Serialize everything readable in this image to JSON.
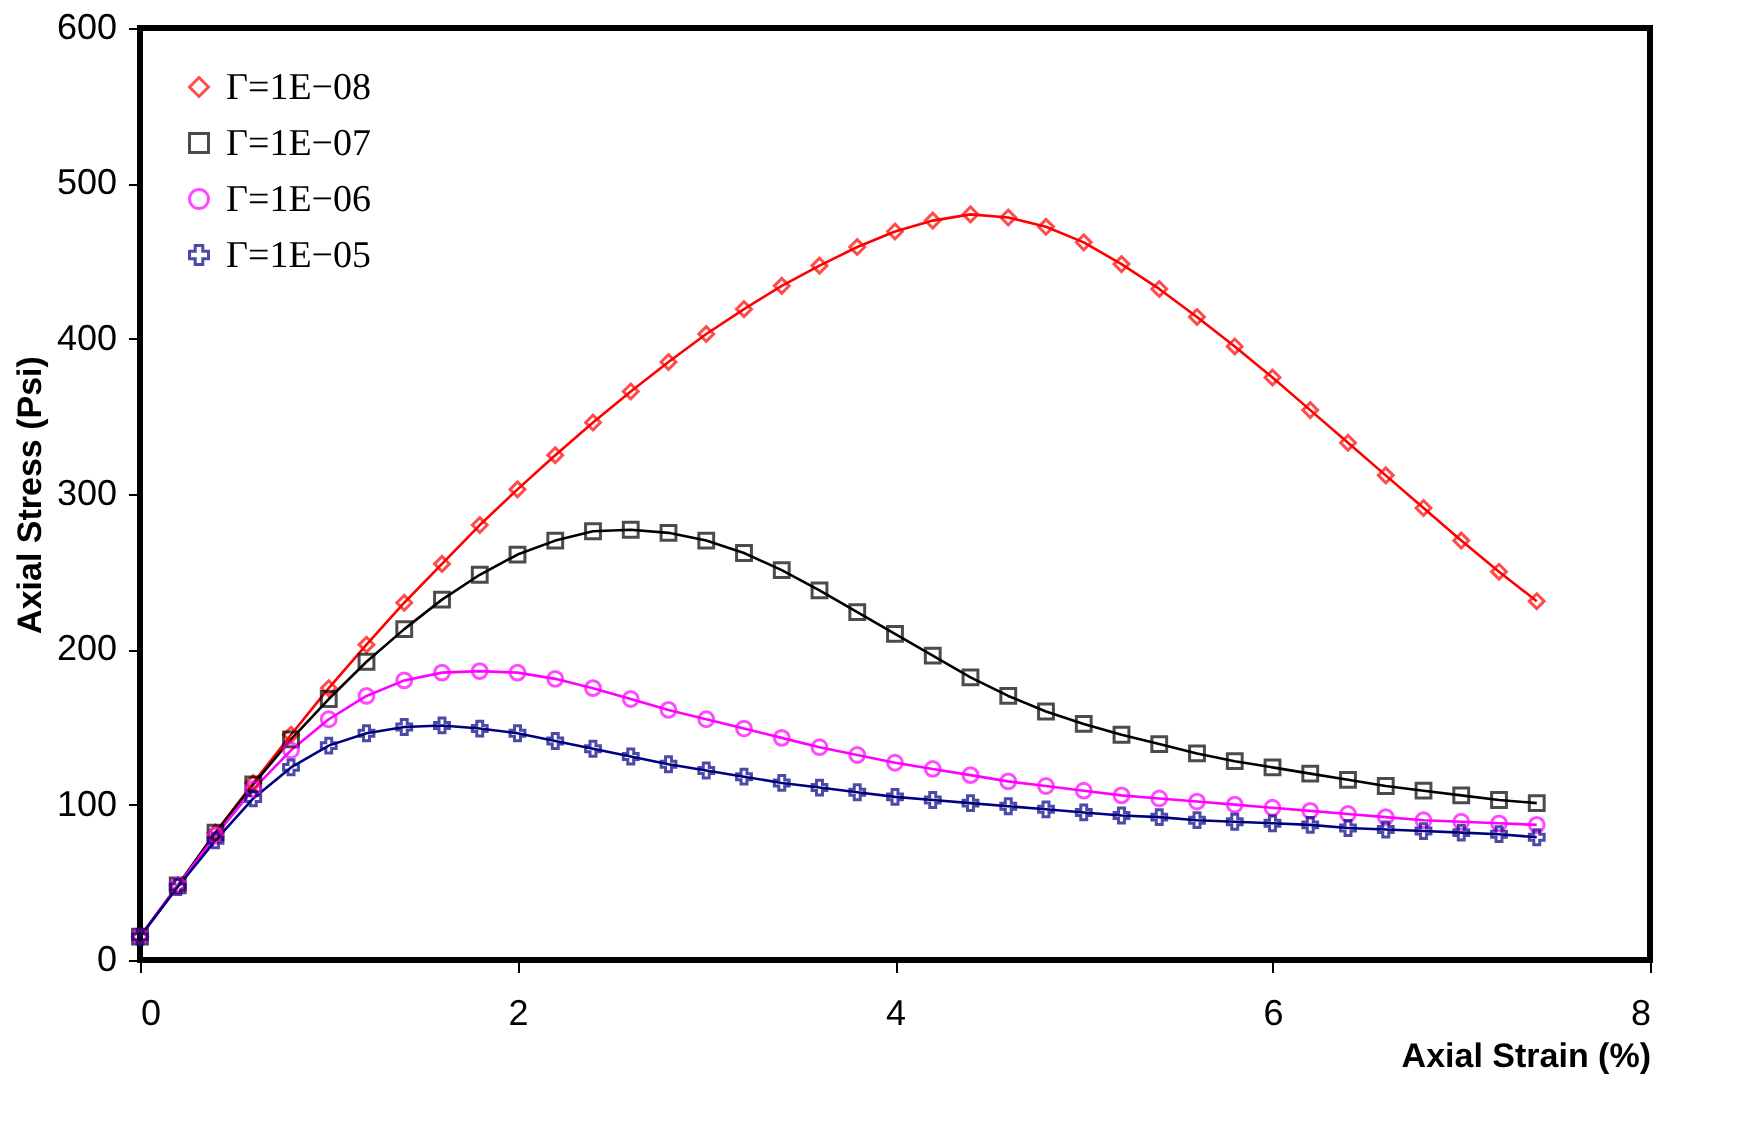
{
  "chart_data": {
    "type": "line",
    "xlabel": "Axial Strain (%)",
    "ylabel": "Axial Stress (Psi)",
    "x": [
      0,
      0.2,
      0.4,
      0.6,
      0.8,
      1.0,
      1.2,
      1.4,
      1.6,
      1.8,
      2.0,
      2.2,
      2.4,
      2.6,
      2.8,
      3.0,
      3.2,
      3.4,
      3.6,
      3.8,
      4.0,
      4.2,
      4.4,
      4.6,
      4.8,
      5.0,
      5.2,
      5.4,
      5.6,
      5.8,
      6.0,
      6.2,
      6.4,
      6.6,
      6.8,
      7.0,
      7.2,
      7.4
    ],
    "series": [
      {
        "name": "Γ=1E−08",
        "color": "#ff0000",
        "marker": "diamond",
        "values": [
          15,
          48,
          82,
          114,
          145,
          175,
          203,
          230,
          255,
          280,
          303,
          325,
          346,
          366,
          385,
          403,
          419,
          434,
          447,
          459,
          469,
          476,
          480,
          478,
          472,
          462,
          448,
          432,
          414,
          395,
          375,
          354,
          333,
          312,
          291,
          270,
          250,
          231
        ]
      },
      {
        "name": "Γ=1E−07",
        "color": "#000000",
        "marker": "square",
        "values": [
          15,
          48,
          82,
          113,
          142,
          168,
          192,
          213,
          232,
          248,
          261,
          270,
          276,
          277,
          275,
          270,
          262,
          251,
          238,
          224,
          210,
          196,
          182,
          170,
          160,
          152,
          145,
          139,
          133,
          128,
          124,
          120,
          116,
          112,
          109,
          106,
          103,
          101
        ]
      },
      {
        "name": "Γ=1E−06",
        "color": "#ff00ff",
        "marker": "circle",
        "values": [
          15,
          48,
          80,
          110,
          135,
          155,
          170,
          180,
          185,
          186,
          185,
          181,
          175,
          168,
          161,
          155,
          149,
          143,
          137,
          132,
          127,
          123,
          119,
          115,
          112,
          109,
          106,
          104,
          102,
          100,
          98,
          96,
          94,
          92,
          90,
          89,
          88,
          87
        ]
      },
      {
        "name": "Γ=1E−05",
        "color": "#000080",
        "marker": "cross",
        "values": [
          15,
          47,
          77,
          104,
          124,
          138,
          146,
          150,
          151,
          149,
          146,
          141,
          136,
          131,
          126,
          122,
          118,
          114,
          111,
          108,
          105,
          103,
          101,
          99,
          97,
          95,
          93,
          92,
          90,
          89,
          88,
          87,
          85,
          84,
          83,
          82,
          81,
          79
        ]
      }
    ],
    "xlim": [
      0,
      8
    ],
    "xticks": [
      0,
      2,
      4,
      6,
      8
    ],
    "ylim": [
      0,
      600
    ],
    "yticks": [
      0,
      100,
      200,
      300,
      400,
      500,
      600
    ],
    "grid": false,
    "legend": "top left",
    "line_style": "solid"
  }
}
